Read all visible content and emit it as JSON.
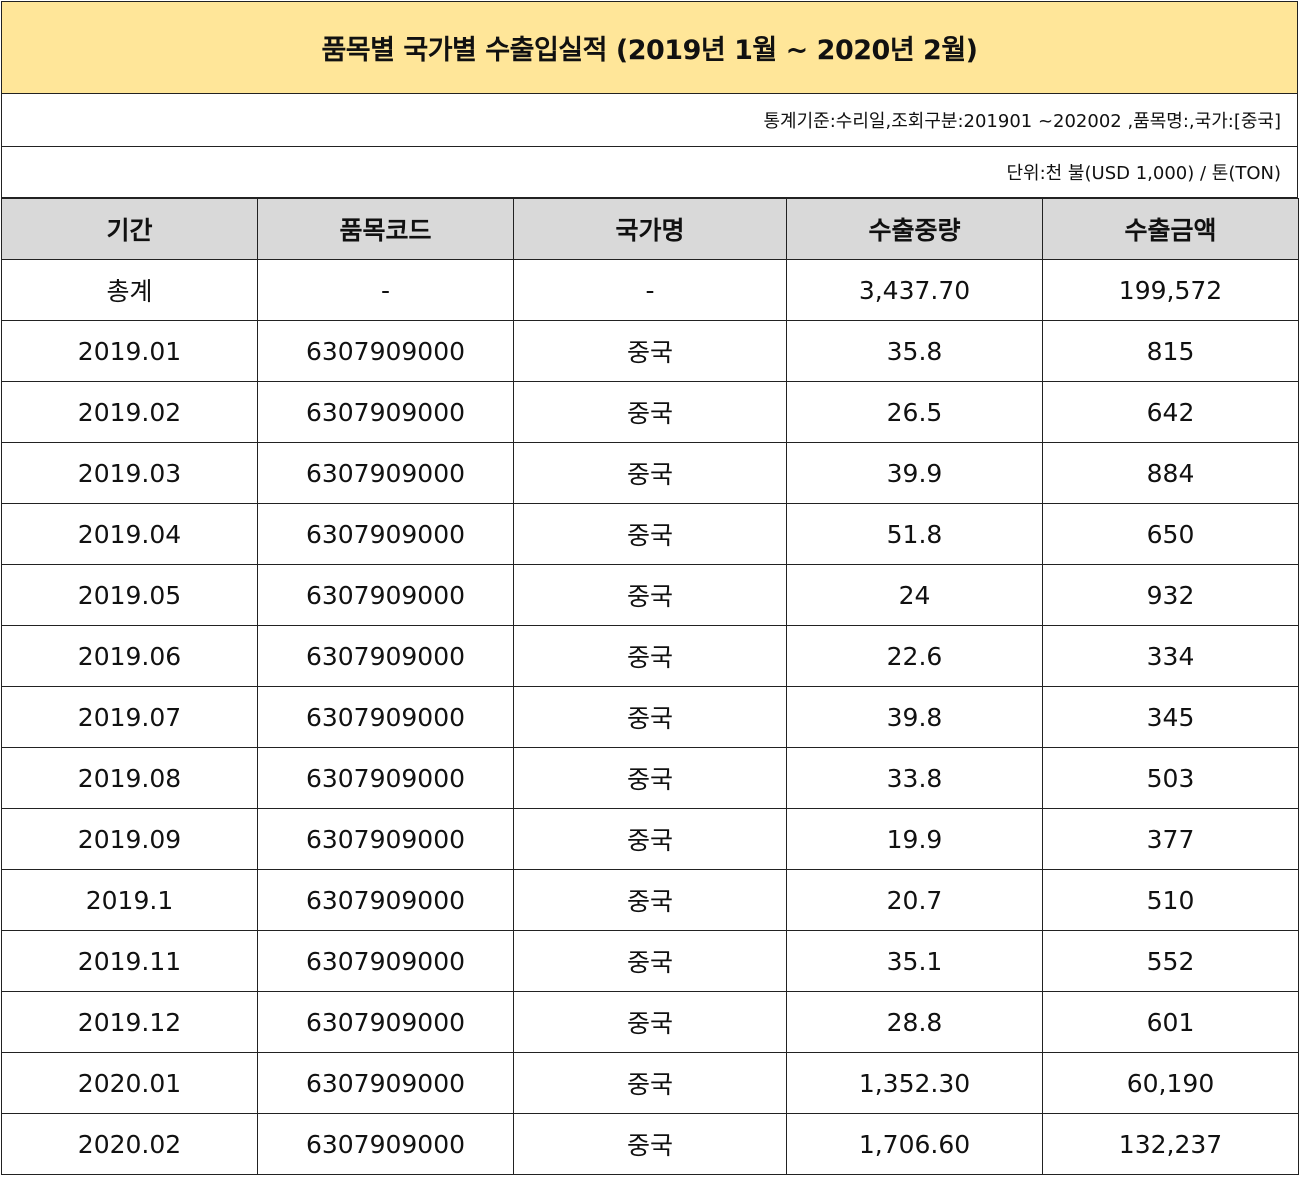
{
  "title": "품목별 국가별  수출입실적 (2019년 1월 ~ 2020년 2월)",
  "criteria": "통계기준:수리일,조회구분:201901 ~202002 ,품목명:,국가:[중국]",
  "unit": "단위:천 불(USD 1,000) / 톤(TON)",
  "headers": [
    "기간",
    "품목코드",
    "국가명",
    "수출중량",
    "수출금액"
  ],
  "rows": [
    [
      "총계",
      "-",
      "-",
      "3,437.70",
      "199,572"
    ],
    [
      "2019.01",
      "6307909000",
      "중국",
      "35.8",
      "815"
    ],
    [
      "2019.02",
      "6307909000",
      "중국",
      "26.5",
      "642"
    ],
    [
      "2019.03",
      "6307909000",
      "중국",
      "39.9",
      "884"
    ],
    [
      "2019.04",
      "6307909000",
      "중국",
      "51.8",
      "650"
    ],
    [
      "2019.05",
      "6307909000",
      "중국",
      "24",
      "932"
    ],
    [
      "2019.06",
      "6307909000",
      "중국",
      "22.6",
      "334"
    ],
    [
      "2019.07",
      "6307909000",
      "중국",
      "39.8",
      "345"
    ],
    [
      "2019.08",
      "6307909000",
      "중국",
      "33.8",
      "503"
    ],
    [
      "2019.09",
      "6307909000",
      "중국",
      "19.9",
      "377"
    ],
    [
      "2019.1",
      "6307909000",
      "중국",
      "20.7",
      "510"
    ],
    [
      "2019.11",
      "6307909000",
      "중국",
      "35.1",
      "552"
    ],
    [
      "2019.12",
      "6307909000",
      "중국",
      "28.8",
      "601"
    ],
    [
      "2020.01",
      "6307909000",
      "중국",
      "1,352.30",
      "60,190"
    ],
    [
      "2020.02",
      "6307909000",
      "중국",
      "1,706.60",
      "132,237"
    ]
  ]
}
